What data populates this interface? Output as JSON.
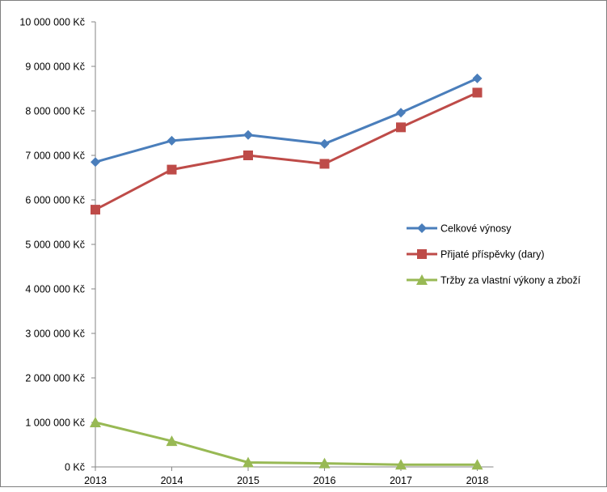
{
  "chart_data": {
    "type": "line",
    "title": "",
    "xlabel": "",
    "ylabel": "",
    "categories": [
      "2013",
      "2014",
      "2015",
      "2016",
      "2017",
      "2018"
    ],
    "ylim": [
      0,
      10000000
    ],
    "y_ticks": [
      {
        "value": 0,
        "label": "0 Kč"
      },
      {
        "value": 1000000,
        "label": "1 000 000 Kč"
      },
      {
        "value": 2000000,
        "label": "2 000 000 Kč"
      },
      {
        "value": 3000000,
        "label": "3 000 000 Kč"
      },
      {
        "value": 4000000,
        "label": "4 000 000 Kč"
      },
      {
        "value": 5000000,
        "label": "5 000 000 Kč"
      },
      {
        "value": 6000000,
        "label": "6 000 000 Kč"
      },
      {
        "value": 7000000,
        "label": "7 000 000 Kč"
      },
      {
        "value": 8000000,
        "label": "8 000 000 Kč"
      },
      {
        "value": 9000000,
        "label": "9 000 000 Kč"
      },
      {
        "value": 10000000,
        "label": "10 000 000 Kč"
      }
    ],
    "grid": false,
    "legend_position": "right",
    "series": [
      {
        "name": "Celkové výnosy",
        "color": "#4a7ebb",
        "marker": "diamond",
        "values": [
          6850000,
          7330000,
          7460000,
          7260000,
          7960000,
          8730000
        ]
      },
      {
        "name": "Přijaté příspěvky (dary)",
        "color": "#be4b48",
        "marker": "square",
        "values": [
          5780000,
          6680000,
          7000000,
          6810000,
          7630000,
          8410000
        ]
      },
      {
        "name": "Tržby za vlastní výkony a zboží",
        "color": "#98b954",
        "marker": "triangle",
        "values": [
          1000000,
          580000,
          100000,
          80000,
          50000,
          50000
        ]
      }
    ]
  }
}
